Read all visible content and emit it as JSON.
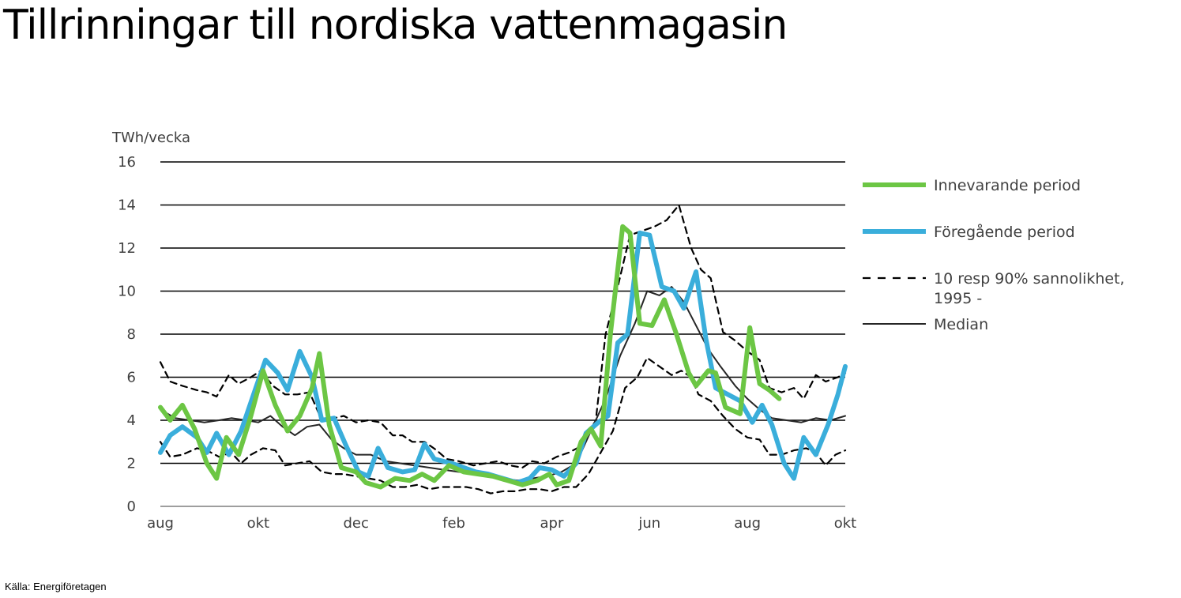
{
  "slide": {
    "title": "Tillrinningar till nordiska vattenmagasin",
    "source": "Källa: Energiföretagen"
  },
  "chart_data": {
    "type": "line",
    "ylabel": "TWh/vecka",
    "ylim": [
      0,
      16
    ],
    "yticks": [
      0,
      2,
      4,
      6,
      8,
      10,
      12,
      14,
      16
    ],
    "xlim": [
      0,
      14
    ],
    "xtick_labels": [
      {
        "x": 0,
        "label": "aug"
      },
      {
        "x": 2,
        "label": "okt"
      },
      {
        "x": 4,
        "label": "dec"
      },
      {
        "x": 6,
        "label": "feb"
      },
      {
        "x": 8,
        "label": "apr"
      },
      {
        "x": 10,
        "label": "jun"
      },
      {
        "x": 12,
        "label": "aug"
      },
      {
        "x": 14,
        "label": "okt"
      }
    ],
    "grid": true,
    "legend_position": "right",
    "series": [
      {
        "name": "Innevarande period",
        "color": "#6cc644",
        "style": "thick",
        "points": [
          [
            0,
            4.6
          ],
          [
            0.2,
            4.0
          ],
          [
            0.45,
            4.7
          ],
          [
            0.7,
            3.6
          ],
          [
            0.95,
            2.0
          ],
          [
            1.15,
            1.3
          ],
          [
            1.35,
            3.2
          ],
          [
            1.6,
            2.4
          ],
          [
            1.85,
            4.2
          ],
          [
            2.1,
            6.3
          ],
          [
            2.35,
            4.7
          ],
          [
            2.6,
            3.5
          ],
          [
            2.85,
            4.2
          ],
          [
            3.1,
            5.5
          ],
          [
            3.25,
            7.1
          ],
          [
            3.45,
            3.8
          ],
          [
            3.7,
            1.8
          ],
          [
            4.0,
            1.6
          ],
          [
            4.2,
            1.1
          ],
          [
            4.5,
            0.9
          ],
          [
            4.8,
            1.3
          ],
          [
            5.1,
            1.2
          ],
          [
            5.35,
            1.5
          ],
          [
            5.6,
            1.2
          ],
          [
            5.9,
            1.9
          ],
          [
            6.2,
            1.6
          ],
          [
            6.5,
            1.5
          ],
          [
            6.8,
            1.4
          ],
          [
            7.1,
            1.2
          ],
          [
            7.4,
            1.0
          ],
          [
            7.7,
            1.2
          ],
          [
            7.95,
            1.5
          ],
          [
            8.1,
            1.0
          ],
          [
            8.35,
            1.2
          ],
          [
            8.6,
            3.0
          ],
          [
            8.8,
            3.6
          ],
          [
            9.0,
            2.8
          ],
          [
            9.2,
            8.0
          ],
          [
            9.45,
            13.0
          ],
          [
            9.6,
            12.7
          ],
          [
            9.8,
            8.5
          ],
          [
            10.05,
            8.4
          ],
          [
            10.3,
            9.6
          ],
          [
            10.55,
            8.0
          ],
          [
            10.8,
            6.2
          ],
          [
            10.95,
            5.6
          ],
          [
            11.2,
            6.3
          ],
          [
            11.35,
            6.2
          ],
          [
            11.55,
            4.6
          ],
          [
            11.85,
            4.3
          ],
          [
            12.05,
            8.3
          ],
          [
            12.25,
            5.7
          ],
          [
            12.45,
            5.4
          ],
          [
            12.65,
            5.0
          ]
        ]
      },
      {
        "name": "Föregående period",
        "color": "#3aaedb",
        "style": "thick",
        "points": [
          [
            0,
            2.5
          ],
          [
            0.2,
            3.3
          ],
          [
            0.45,
            3.7
          ],
          [
            0.75,
            3.2
          ],
          [
            0.95,
            2.5
          ],
          [
            1.15,
            3.4
          ],
          [
            1.4,
            2.4
          ],
          [
            1.65,
            3.5
          ],
          [
            1.95,
            5.5
          ],
          [
            2.15,
            6.8
          ],
          [
            2.4,
            6.2
          ],
          [
            2.6,
            5.4
          ],
          [
            2.85,
            7.2
          ],
          [
            3.1,
            6.0
          ],
          [
            3.3,
            4.0
          ],
          [
            3.55,
            4.1
          ],
          [
            3.8,
            2.8
          ],
          [
            4.05,
            1.6
          ],
          [
            4.25,
            1.4
          ],
          [
            4.45,
            2.7
          ],
          [
            4.65,
            1.8
          ],
          [
            4.95,
            1.6
          ],
          [
            5.2,
            1.7
          ],
          [
            5.4,
            2.9
          ],
          [
            5.6,
            2.2
          ],
          [
            5.95,
            2.0
          ],
          [
            6.2,
            1.8
          ],
          [
            6.45,
            1.6
          ],
          [
            6.7,
            1.5
          ],
          [
            7.0,
            1.3
          ],
          [
            7.3,
            1.1
          ],
          [
            7.55,
            1.3
          ],
          [
            7.75,
            1.8
          ],
          [
            8.0,
            1.7
          ],
          [
            8.25,
            1.4
          ],
          [
            8.5,
            2.0
          ],
          [
            8.7,
            3.4
          ],
          [
            8.95,
            3.9
          ],
          [
            9.15,
            4.2
          ],
          [
            9.35,
            7.6
          ],
          [
            9.55,
            8.0
          ],
          [
            9.8,
            12.7
          ],
          [
            10.0,
            12.6
          ],
          [
            10.25,
            10.2
          ],
          [
            10.5,
            10.0
          ],
          [
            10.7,
            9.2
          ],
          [
            10.95,
            10.9
          ],
          [
            11.15,
            7.8
          ],
          [
            11.35,
            5.5
          ],
          [
            11.6,
            5.2
          ],
          [
            11.85,
            4.9
          ],
          [
            12.1,
            3.9
          ],
          [
            12.3,
            4.7
          ],
          [
            12.5,
            3.8
          ],
          [
            12.75,
            2.0
          ],
          [
            12.95,
            1.3
          ],
          [
            13.15,
            3.2
          ],
          [
            13.4,
            2.4
          ],
          [
            13.65,
            3.8
          ],
          [
            13.85,
            5.2
          ],
          [
            14.0,
            6.5
          ]
        ]
      },
      {
        "name": "10 resp 90% sannolikhet, 1995 -",
        "color": "#000000",
        "style": "dashed",
        "points": [
          [
            0,
            6.7
          ],
          [
            0.2,
            5.8
          ],
          [
            0.45,
            5.6
          ],
          [
            0.75,
            5.4
          ],
          [
            0.95,
            5.3
          ],
          [
            1.15,
            5.1
          ],
          [
            1.4,
            6.1
          ],
          [
            1.6,
            5.7
          ],
          [
            1.85,
            6.0
          ],
          [
            2.05,
            6.3
          ],
          [
            2.3,
            5.6
          ],
          [
            2.55,
            5.2
          ],
          [
            2.8,
            5.2
          ],
          [
            3.05,
            5.3
          ],
          [
            3.3,
            4.0
          ],
          [
            3.55,
            4.1
          ],
          [
            3.75,
            4.2
          ],
          [
            4.0,
            3.9
          ],
          [
            4.25,
            4.0
          ],
          [
            4.5,
            3.9
          ],
          [
            4.75,
            3.3
          ],
          [
            4.95,
            3.3
          ],
          [
            5.15,
            3.0
          ],
          [
            5.4,
            3.0
          ],
          [
            5.65,
            2.6
          ],
          [
            5.85,
            2.2
          ],
          [
            6.1,
            2.1
          ],
          [
            6.4,
            1.9
          ],
          [
            6.65,
            2.0
          ],
          [
            6.9,
            2.1
          ],
          [
            7.15,
            1.9
          ],
          [
            7.4,
            1.8
          ],
          [
            7.6,
            2.1
          ],
          [
            7.85,
            2.0
          ],
          [
            8.1,
            2.3
          ],
          [
            8.35,
            2.5
          ],
          [
            8.6,
            2.8
          ],
          [
            8.9,
            4.0
          ],
          [
            9.1,
            8.0
          ],
          [
            9.35,
            10.2
          ],
          [
            9.6,
            12.6
          ],
          [
            9.85,
            12.8
          ],
          [
            10.1,
            13.0
          ],
          [
            10.35,
            13.3
          ],
          [
            10.6,
            14.0
          ],
          [
            10.85,
            12.0
          ],
          [
            11.05,
            11.0
          ],
          [
            11.25,
            10.6
          ],
          [
            11.5,
            8.1
          ],
          [
            11.75,
            7.7
          ],
          [
            12.0,
            7.2
          ],
          [
            12.25,
            6.8
          ],
          [
            12.45,
            5.5
          ],
          [
            12.7,
            5.3
          ],
          [
            12.95,
            5.5
          ],
          [
            13.15,
            5.0
          ],
          [
            13.4,
            6.1
          ],
          [
            13.6,
            5.8
          ],
          [
            13.85,
            6.0
          ],
          [
            14.0,
            6.2
          ]
        ]
      },
      {
        "name": "",
        "color": "#000000",
        "style": "dashed",
        "points": [
          [
            0,
            3.0
          ],
          [
            0.2,
            2.3
          ],
          [
            0.45,
            2.4
          ],
          [
            0.75,
            2.7
          ],
          [
            0.95,
            2.6
          ],
          [
            1.2,
            2.3
          ],
          [
            1.45,
            2.5
          ],
          [
            1.65,
            2.0
          ],
          [
            1.85,
            2.4
          ],
          [
            2.1,
            2.7
          ],
          [
            2.35,
            2.6
          ],
          [
            2.55,
            1.9
          ],
          [
            2.8,
            2.0
          ],
          [
            3.05,
            2.1
          ],
          [
            3.3,
            1.6
          ],
          [
            3.55,
            1.5
          ],
          [
            3.75,
            1.5
          ],
          [
            4.0,
            1.4
          ],
          [
            4.25,
            1.3
          ],
          [
            4.5,
            1.2
          ],
          [
            4.75,
            0.9
          ],
          [
            5.0,
            0.9
          ],
          [
            5.25,
            1.0
          ],
          [
            5.5,
            0.8
          ],
          [
            5.75,
            0.9
          ],
          [
            6.0,
            0.9
          ],
          [
            6.25,
            0.9
          ],
          [
            6.5,
            0.8
          ],
          [
            6.75,
            0.6
          ],
          [
            7.0,
            0.7
          ],
          [
            7.25,
            0.7
          ],
          [
            7.5,
            0.8
          ],
          [
            7.75,
            0.8
          ],
          [
            8.0,
            0.7
          ],
          [
            8.25,
            0.9
          ],
          [
            8.5,
            0.9
          ],
          [
            8.75,
            1.5
          ],
          [
            9.0,
            2.5
          ],
          [
            9.25,
            3.5
          ],
          [
            9.5,
            5.5
          ],
          [
            9.75,
            6.0
          ],
          [
            9.95,
            6.9
          ],
          [
            10.2,
            6.5
          ],
          [
            10.45,
            6.1
          ],
          [
            10.65,
            6.3
          ],
          [
            10.85,
            6.0
          ],
          [
            11.0,
            5.2
          ],
          [
            11.25,
            4.9
          ],
          [
            11.5,
            4.2
          ],
          [
            11.75,
            3.6
          ],
          [
            12.0,
            3.2
          ],
          [
            12.25,
            3.1
          ],
          [
            12.45,
            2.4
          ],
          [
            12.7,
            2.4
          ],
          [
            12.95,
            2.6
          ],
          [
            13.2,
            2.7
          ],
          [
            13.4,
            2.5
          ],
          [
            13.6,
            1.9
          ],
          [
            13.8,
            2.4
          ],
          [
            14.0,
            2.6
          ]
        ]
      },
      {
        "name": "Median",
        "color": "#262626",
        "style": "thin",
        "points": [
          [
            0,
            4.5
          ],
          [
            0.3,
            4.1
          ],
          [
            0.6,
            4.0
          ],
          [
            0.9,
            3.9
          ],
          [
            1.2,
            4.0
          ],
          [
            1.45,
            4.1
          ],
          [
            1.75,
            4.0
          ],
          [
            2.0,
            3.9
          ],
          [
            2.25,
            4.2
          ],
          [
            2.5,
            3.7
          ],
          [
            2.75,
            3.3
          ],
          [
            3.0,
            3.7
          ],
          [
            3.25,
            3.8
          ],
          [
            3.5,
            3.1
          ],
          [
            3.75,
            2.7
          ],
          [
            4.0,
            2.4
          ],
          [
            4.3,
            2.4
          ],
          [
            4.6,
            2.1
          ],
          [
            4.9,
            2.0
          ],
          [
            5.2,
            1.9
          ],
          [
            5.5,
            1.8
          ],
          [
            5.8,
            1.7
          ],
          [
            6.1,
            1.6
          ],
          [
            6.4,
            1.5
          ],
          [
            6.7,
            1.4
          ],
          [
            7.0,
            1.3
          ],
          [
            7.3,
            1.2
          ],
          [
            7.6,
            1.3
          ],
          [
            7.9,
            1.4
          ],
          [
            8.2,
            1.6
          ],
          [
            8.5,
            2.0
          ],
          [
            8.8,
            3.5
          ],
          [
            9.1,
            5.0
          ],
          [
            9.4,
            7.0
          ],
          [
            9.7,
            8.5
          ],
          [
            9.95,
            10.0
          ],
          [
            10.2,
            9.8
          ],
          [
            10.45,
            10.2
          ],
          [
            10.7,
            9.5
          ],
          [
            10.95,
            8.4
          ],
          [
            11.2,
            7.3
          ],
          [
            11.45,
            6.5
          ],
          [
            11.75,
            5.6
          ],
          [
            12.0,
            5.0
          ],
          [
            12.25,
            4.5
          ],
          [
            12.5,
            4.1
          ],
          [
            12.8,
            4.0
          ],
          [
            13.1,
            3.9
          ],
          [
            13.4,
            4.1
          ],
          [
            13.7,
            4.0
          ],
          [
            14.0,
            4.2
          ]
        ]
      }
    ],
    "legend": [
      {
        "label": "Innevarande period",
        "color": "#6cc644",
        "style": "thick"
      },
      {
        "label": "Föregående period",
        "color": "#3aaedb",
        "style": "thick"
      },
      {
        "label": "10 resp 90% sannolikhet,",
        "label2": "1995 -",
        "color": "#000000",
        "style": "dashed"
      },
      {
        "label": "Median",
        "color": "#262626",
        "style": "thin"
      }
    ]
  }
}
